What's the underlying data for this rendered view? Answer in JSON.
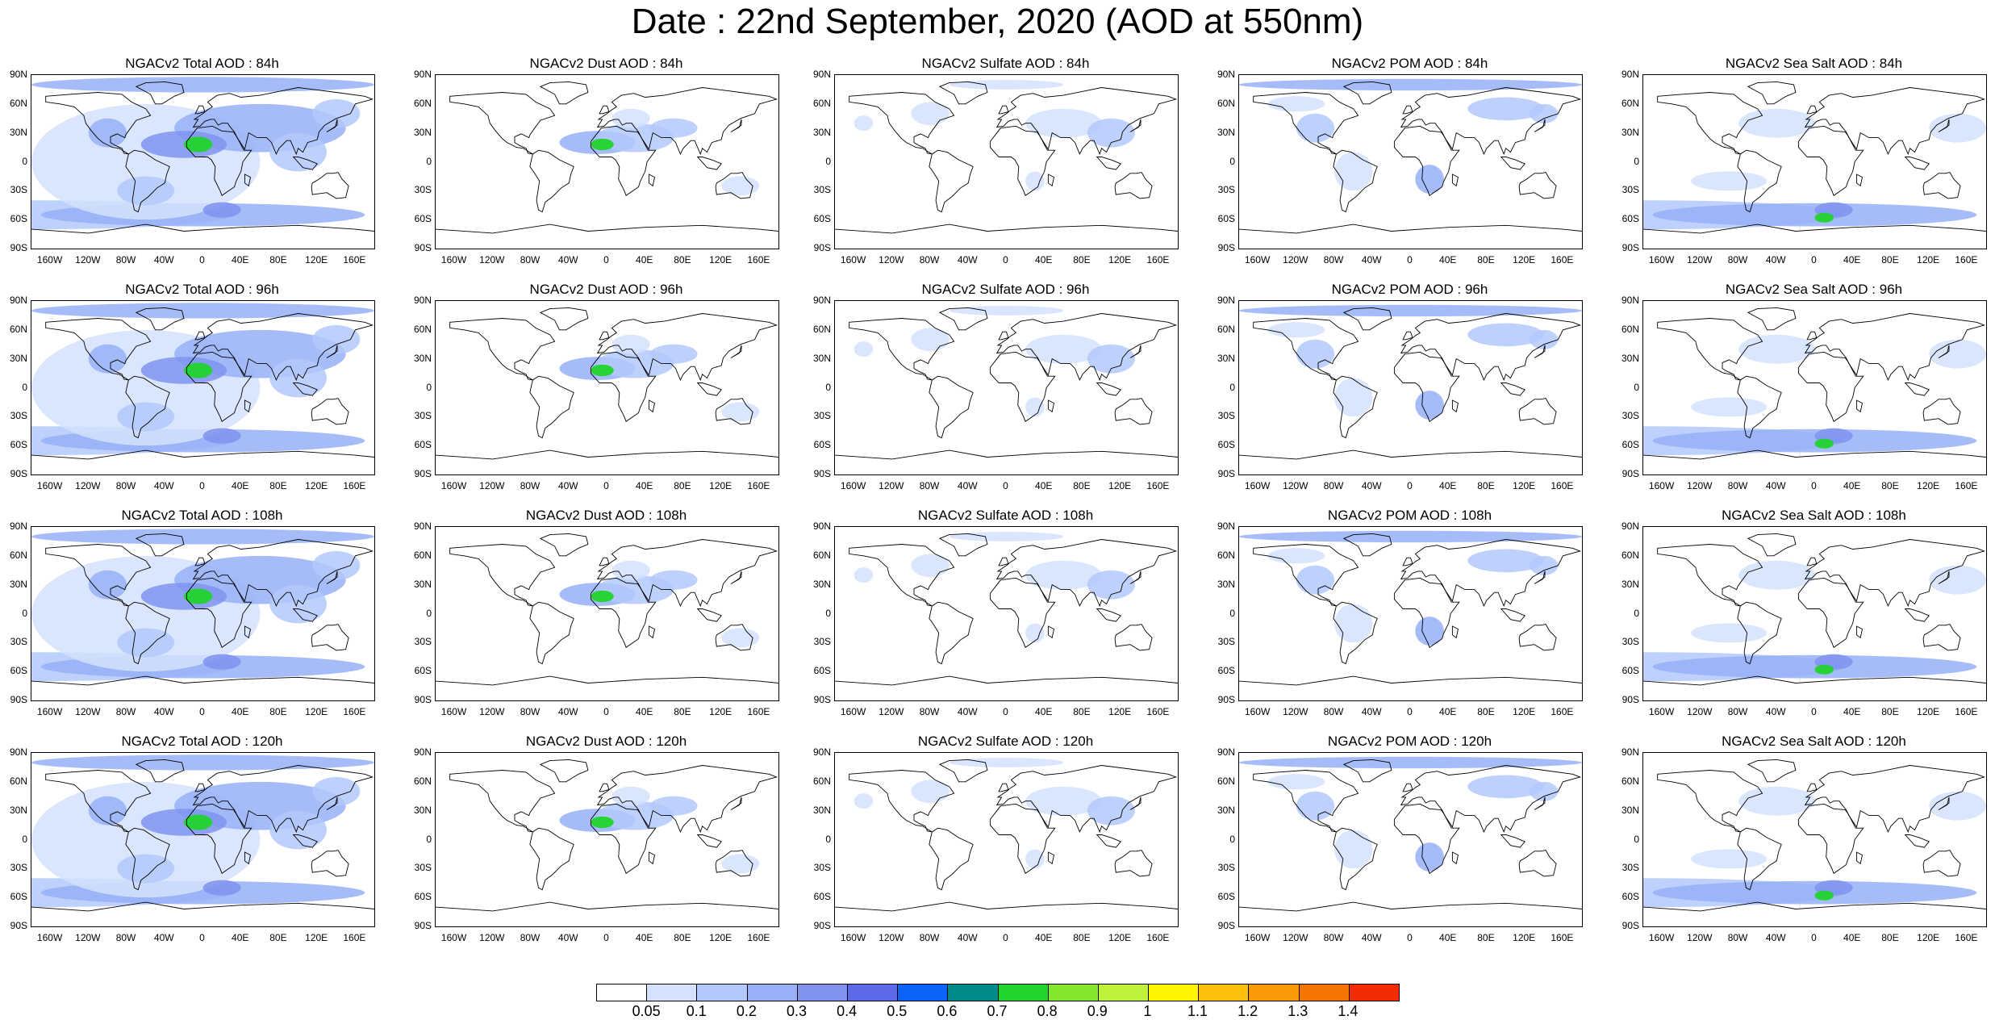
{
  "title": "Date : 22nd September, 2020 (AOD at 550nm)",
  "row_panel_titles": [
    [
      "NGACv2 Total AOD : 84h",
      "NGACv2 Dust AOD : 84h",
      "NGACv2 Sulfate AOD : 84h",
      "NGACv2 POM AOD : 84h",
      "NGACv2 Sea Salt AOD : 84h"
    ],
    [
      "NGACv2 Total AOD : 96h",
      "NGACv2 Dust AOD : 96h",
      "NGACv2 Sulfate AOD : 96h",
      "NGACv2 POM AOD : 96h",
      "NGACv2 Sea Salt AOD : 96h"
    ],
    [
      "NGACv2 Total AOD : 108h",
      "NGACv2 Dust AOD : 108h",
      "NGACv2 Sulfate AOD : 108h",
      "NGACv2 POM AOD : 108h",
      "NGACv2 Sea Salt AOD : 108h"
    ],
    [
      "NGACv2 Total AOD : 120h",
      "NGACv2 Dust AOD : 120h",
      "NGACv2 Sulfate AOD : 120h",
      "NGACv2 POM AOD : 120h",
      "NGACv2 Sea Salt  AOD : 120h"
    ]
  ],
  "lat_labels": [
    "90N",
    "60N",
    "30N",
    "0",
    "30S",
    "60S",
    "90S"
  ],
  "lon_labels": [
    "160W",
    "120W",
    "80W",
    "40W",
    "0",
    "40E",
    "80E",
    "120E",
    "160E"
  ],
  "colorbar": {
    "labels": [
      "0.05",
      "0.1",
      "0.2",
      "0.3",
      "0.4",
      "0.5",
      "0.6",
      "0.7",
      "0.8",
      "0.9",
      "1",
      "1.1",
      "1.2",
      "1.3",
      "1.4"
    ],
    "colors": [
      "#ffffff",
      "#d4e2fd",
      "#b3c8fb",
      "#97b0f7",
      "#7f93ee",
      "#5b6ae8",
      "#0a64f7",
      "#008b8b",
      "#21d42c",
      "#83e82d",
      "#bff03a",
      "#fff500",
      "#fbc10e",
      "#f99a06",
      "#f57404",
      "#f22d04"
    ]
  }
}
